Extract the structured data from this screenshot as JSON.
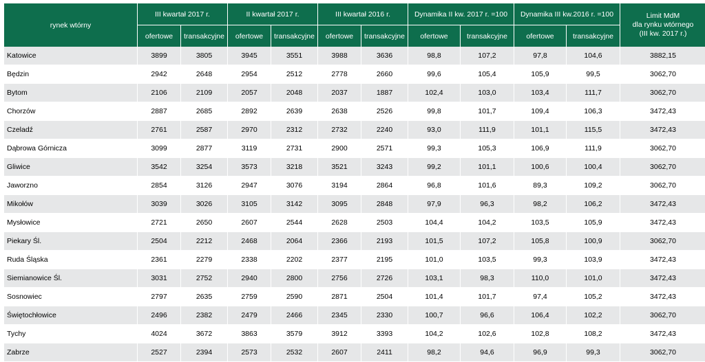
{
  "header": {
    "row_label": "rynek wtórny",
    "groups": [
      "III kwartał 2017 r.",
      "II kwartał 2017 r.",
      "III kwartał 2016 r.",
      "Dynamika II kw. 2017 r. =100",
      "Dynamika III kw.2016 r. =100"
    ],
    "limit_lines": [
      "Limit MdM",
      "dla rynku wtórnego",
      "(III kw. 2017 r.)"
    ],
    "sub": [
      "ofertowe",
      "transakcyjne"
    ]
  },
  "rows": [
    {
      "city": "Katowice",
      "v": [
        "3899",
        "3805",
        "3945",
        "3551",
        "3988",
        "3636",
        "98,8",
        "107,2",
        "97,8",
        "104,6",
        "3882,15"
      ]
    },
    {
      "city": "Będzin",
      "v": [
        "2942",
        "2648",
        "2954",
        "2512",
        "2778",
        "2660",
        "99,6",
        "105,4",
        "105,9",
        "99,5",
        "3062,70"
      ]
    },
    {
      "city": "Bytom",
      "v": [
        "2106",
        "2109",
        "2057",
        "2048",
        "2037",
        "1887",
        "102,4",
        "103,0",
        "103,4",
        "111,7",
        "3062,70"
      ]
    },
    {
      "city": "Chorzów",
      "v": [
        "2887",
        "2685",
        "2892",
        "2639",
        "2638",
        "2526",
        "99,8",
        "101,7",
        "109,4",
        "106,3",
        "3472,43"
      ]
    },
    {
      "city": "Czeladź",
      "v": [
        "2761",
        "2587",
        "2970",
        "2312",
        "2732",
        "2240",
        "93,0",
        "111,9",
        "101,1",
        "115,5",
        "3472,43"
      ]
    },
    {
      "city": "Dąbrowa Górnicza",
      "v": [
        "3099",
        "2877",
        "3119",
        "2731",
        "2900",
        "2571",
        "99,3",
        "105,3",
        "106,9",
        "111,9",
        "3062,70"
      ]
    },
    {
      "city": "Gliwice",
      "v": [
        "3542",
        "3254",
        "3573",
        "3218",
        "3521",
        "3243",
        "99,2",
        "101,1",
        "100,6",
        "100,4",
        "3062,70"
      ]
    },
    {
      "city": "Jaworzno",
      "v": [
        "2854",
        "3126",
        "2947",
        "3076",
        "3194",
        "2864",
        "96,8",
        "101,6",
        "89,3",
        "109,2",
        "3062,70"
      ]
    },
    {
      "city": "Mikołów",
      "v": [
        "3039",
        "3026",
        "3105",
        "3142",
        "3095",
        "2848",
        "97,9",
        "96,3",
        "98,2",
        "106,2",
        "3472,43"
      ]
    },
    {
      "city": "Mysłowice",
      "v": [
        "2721",
        "2650",
        "2607",
        "2544",
        "2628",
        "2503",
        "104,4",
        "104,2",
        "103,5",
        "105,9",
        "3472,43"
      ]
    },
    {
      "city": "Piekary Śl.",
      "v": [
        "2504",
        "2212",
        "2468",
        "2064",
        "2366",
        "2193",
        "101,5",
        "107,2",
        "105,8",
        "100,9",
        "3062,70"
      ]
    },
    {
      "city": "Ruda Śląska",
      "v": [
        "2361",
        "2279",
        "2338",
        "2202",
        "2377",
        "2195",
        "101,0",
        "103,5",
        "99,3",
        "103,9",
        "3472,43"
      ]
    },
    {
      "city": "Siemianowice Śl.",
      "v": [
        "3031",
        "2752",
        "2940",
        "2800",
        "2756",
        "2726",
        "103,1",
        "98,3",
        "110,0",
        "101,0",
        "3472,43"
      ]
    },
    {
      "city": "Sosnowiec",
      "v": [
        "2797",
        "2635",
        "2759",
        "2590",
        "2871",
        "2504",
        "101,4",
        "101,7",
        "97,4",
        "105,2",
        "3472,43"
      ]
    },
    {
      "city": "Świętochłowice",
      "v": [
        "2496",
        "2382",
        "2479",
        "2466",
        "2345",
        "2330",
        "100,7",
        "96,6",
        "106,4",
        "102,2",
        "3062,70"
      ]
    },
    {
      "city": "Tychy",
      "v": [
        "4024",
        "3672",
        "3863",
        "3579",
        "3912",
        "3393",
        "104,2",
        "102,6",
        "102,8",
        "108,2",
        "3472,43"
      ]
    },
    {
      "city": "Zabrze",
      "v": [
        "2527",
        "2394",
        "2573",
        "2532",
        "2607",
        "2411",
        "98,2",
        "94,6",
        "96,9",
        "99,3",
        "3062,70"
      ]
    }
  ]
}
